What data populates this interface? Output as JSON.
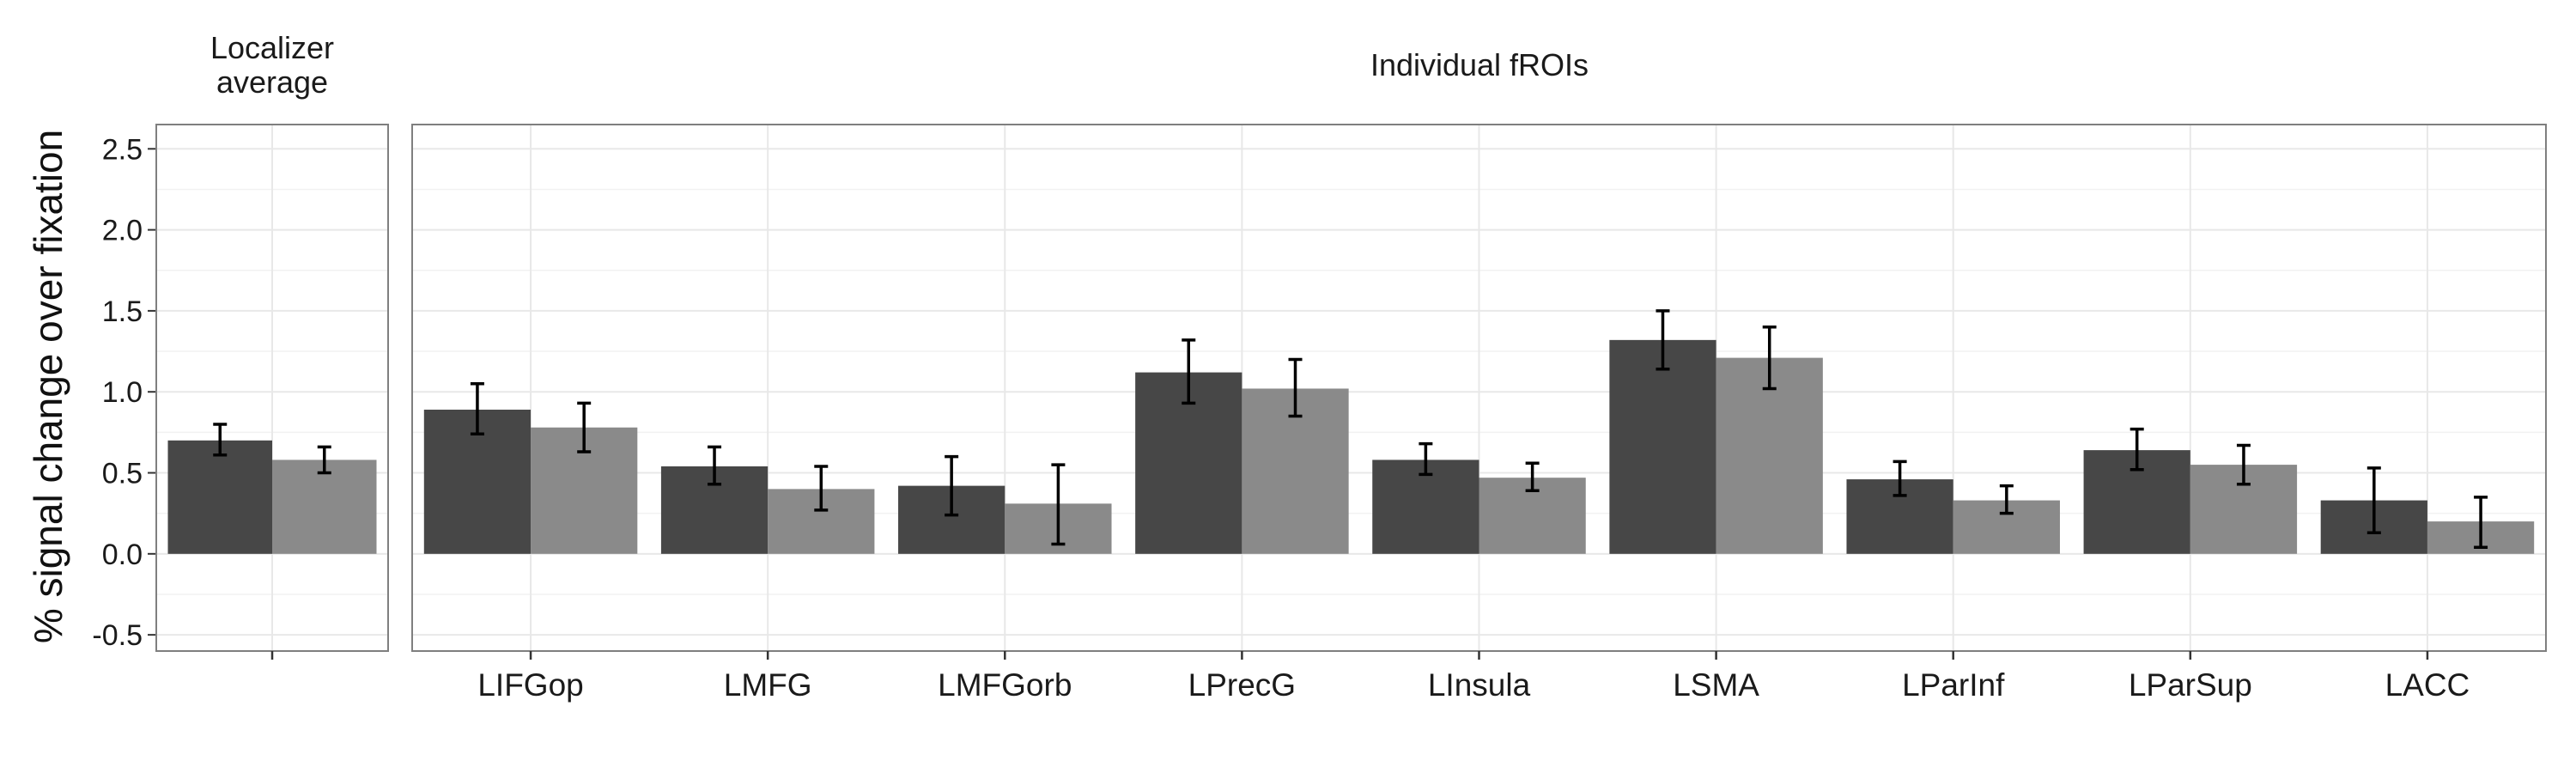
{
  "colors": {
    "condition_1": "#474747",
    "condition_2": "#8a8a8a",
    "grid": "#e8e8e8",
    "panel_border": "#7f7f7f",
    "error_bar": "#000000"
  },
  "chart_data": {
    "type": "bar",
    "ylabel": "% signal change over fixation",
    "ylim": [
      -0.6,
      2.65
    ],
    "yticks": [
      -0.5,
      0.0,
      0.5,
      1.0,
      1.5,
      2.0,
      2.5
    ],
    "ytick_labels": [
      "-0.5",
      "0.0",
      "0.5",
      "1.0",
      "1.5",
      "2.0",
      "2.5"
    ],
    "grid": true,
    "legend": "none",
    "panels": [
      {
        "strip_lines": [
          "Localizer",
          "average"
        ],
        "categories": [
          ""
        ],
        "series": [
          {
            "values": [
              0.7
            ],
            "err_low": [
              0.61
            ],
            "err_high": [
              0.8
            ]
          },
          {
            "values": [
              0.58
            ],
            "err_low": [
              0.5
            ],
            "err_high": [
              0.66
            ]
          }
        ]
      },
      {
        "strip_lines": [
          "Individual fROIs"
        ],
        "categories": [
          "LIFGop",
          "LMFG",
          "LMFGorb",
          "LPrecG",
          "LInsula",
          "LSMA",
          "LParInf",
          "LParSup",
          "LACC"
        ],
        "series": [
          {
            "values": [
              0.89,
              0.54,
              0.42,
              1.12,
              0.58,
              1.32,
              0.46,
              0.64,
              0.33
            ],
            "err_low": [
              0.74,
              0.43,
              0.24,
              0.93,
              0.49,
              1.14,
              0.36,
              0.52,
              0.13
            ],
            "err_high": [
              1.05,
              0.66,
              0.6,
              1.32,
              0.68,
              1.5,
              0.57,
              0.77,
              0.53
            ]
          },
          {
            "values": [
              0.78,
              0.4,
              0.31,
              1.02,
              0.47,
              1.21,
              0.33,
              0.55,
              0.2
            ],
            "err_low": [
              0.63,
              0.27,
              0.06,
              0.85,
              0.39,
              1.02,
              0.25,
              0.43,
              0.04
            ],
            "err_high": [
              0.93,
              0.54,
              0.55,
              1.2,
              0.56,
              1.4,
              0.42,
              0.67,
              0.35
            ]
          }
        ]
      }
    ]
  }
}
